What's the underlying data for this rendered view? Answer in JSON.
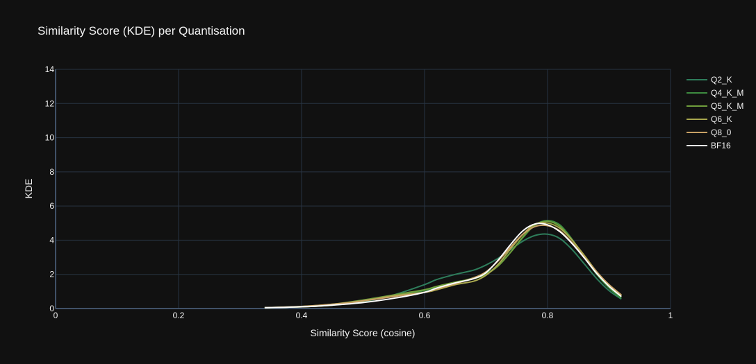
{
  "chart_data": {
    "type": "line",
    "title": "Similarity Score (KDE) per Quantisation",
    "xlabel": "Similarity Score (cosine)",
    "ylabel": "KDE",
    "xlim": [
      0,
      1
    ],
    "ylim": [
      0,
      14
    ],
    "xticks": [
      0,
      0.2,
      0.4,
      0.6,
      0.8,
      1
    ],
    "xtick_labels": [
      "0",
      "0.2",
      "0.4",
      "0.6",
      "0.8",
      "1"
    ],
    "yticks": [
      0,
      2,
      4,
      6,
      8,
      10,
      12,
      14
    ],
    "ytick_labels": [
      "0",
      "2",
      "4",
      "6",
      "8",
      "10",
      "12",
      "14"
    ],
    "grid": true,
    "legend_position": "right",
    "series": [
      {
        "name": "Q2_K",
        "color": "#2e7d5b",
        "x": [
          0.34,
          0.4,
          0.45,
          0.5,
          0.55,
          0.6,
          0.62,
          0.65,
          0.68,
          0.7,
          0.72,
          0.74,
          0.76,
          0.78,
          0.8,
          0.82,
          0.84,
          0.86,
          0.88,
          0.9,
          0.92
        ],
        "y": [
          0.05,
          0.1,
          0.2,
          0.4,
          0.8,
          1.4,
          1.7,
          2.0,
          2.25,
          2.55,
          2.95,
          3.45,
          3.95,
          4.28,
          4.35,
          4.1,
          3.45,
          2.6,
          1.75,
          1.05,
          0.55
        ]
      },
      {
        "name": "Q4_K_M",
        "color": "#3d8c40",
        "x": [
          0.34,
          0.4,
          0.45,
          0.5,
          0.55,
          0.6,
          0.62,
          0.65,
          0.68,
          0.7,
          0.72,
          0.74,
          0.76,
          0.78,
          0.8,
          0.82,
          0.84,
          0.86,
          0.88,
          0.9,
          0.92
        ],
        "y": [
          0.05,
          0.1,
          0.2,
          0.45,
          0.75,
          1.05,
          1.25,
          1.5,
          1.8,
          2.05,
          2.55,
          3.3,
          4.15,
          4.9,
          5.15,
          4.9,
          4.05,
          3.0,
          2.0,
          1.2,
          0.6
        ]
      },
      {
        "name": "Q5_K_M",
        "color": "#6f9e3c",
        "x": [
          0.34,
          0.4,
          0.45,
          0.5,
          0.55,
          0.6,
          0.62,
          0.65,
          0.68,
          0.7,
          0.72,
          0.74,
          0.76,
          0.78,
          0.8,
          0.82,
          0.84,
          0.86,
          0.88,
          0.9,
          0.92
        ],
        "y": [
          0.05,
          0.12,
          0.25,
          0.5,
          0.8,
          1.1,
          1.3,
          1.55,
          1.75,
          2.0,
          2.5,
          3.3,
          4.2,
          4.9,
          5.1,
          4.8,
          4.0,
          3.05,
          2.1,
          1.3,
          0.7
        ]
      },
      {
        "name": "Q6_K",
        "color": "#a9a84e",
        "x": [
          0.34,
          0.4,
          0.45,
          0.5,
          0.55,
          0.6,
          0.62,
          0.65,
          0.68,
          0.7,
          0.72,
          0.74,
          0.76,
          0.78,
          0.8,
          0.82,
          0.84,
          0.86,
          0.88,
          0.9,
          0.92
        ],
        "y": [
          0.05,
          0.1,
          0.2,
          0.45,
          0.75,
          0.95,
          1.1,
          1.4,
          1.6,
          1.95,
          2.6,
          3.5,
          4.35,
          4.95,
          5.0,
          4.7,
          4.0,
          3.1,
          2.15,
          1.35,
          0.75
        ]
      },
      {
        "name": "Q8_0",
        "color": "#c8a165",
        "x": [
          0.34,
          0.4,
          0.45,
          0.5,
          0.55,
          0.6,
          0.62,
          0.65,
          0.68,
          0.7,
          0.72,
          0.74,
          0.76,
          0.78,
          0.8,
          0.82,
          0.84,
          0.86,
          0.88,
          0.9,
          0.92
        ],
        "y": [
          0.05,
          0.12,
          0.25,
          0.45,
          0.7,
          0.95,
          1.15,
          1.45,
          1.8,
          2.15,
          2.8,
          3.6,
          4.35,
          4.8,
          4.85,
          4.55,
          3.85,
          3.0,
          2.15,
          1.4,
          0.8
        ]
      },
      {
        "name": "BF16",
        "color": "#ffffff",
        "x": [
          0.34,
          0.4,
          0.45,
          0.5,
          0.55,
          0.6,
          0.62,
          0.65,
          0.68,
          0.7,
          0.72,
          0.74,
          0.76,
          0.78,
          0.8,
          0.82,
          0.84,
          0.86,
          0.88,
          0.9,
          0.92
        ],
        "y": [
          0.05,
          0.1,
          0.2,
          0.35,
          0.6,
          0.95,
          1.2,
          1.5,
          1.75,
          2.1,
          2.85,
          3.75,
          4.55,
          4.95,
          4.9,
          4.5,
          3.8,
          2.95,
          2.05,
          1.3,
          0.7
        ]
      }
    ]
  }
}
